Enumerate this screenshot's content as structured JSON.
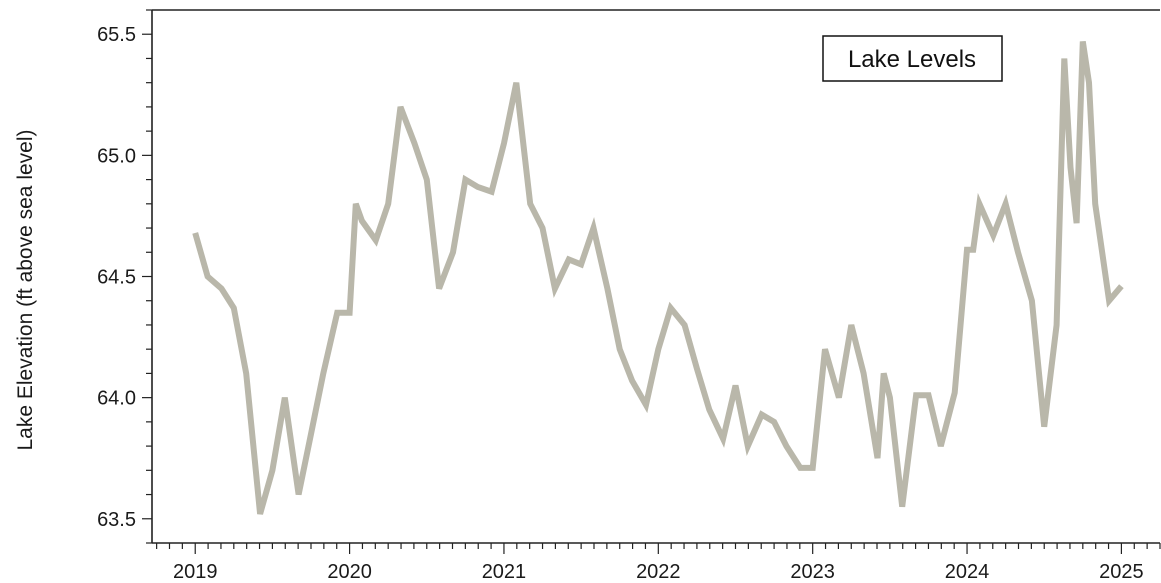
{
  "chart_data": {
    "type": "line",
    "title": "",
    "xlabel": "",
    "ylabel": "Lake Elevation (ft above sea level)",
    "legend": {
      "placement": "top-right",
      "entries": [
        "Lake Levels"
      ]
    },
    "xlim": [
      2018.72,
      2025.25
    ],
    "ylim": [
      63.4,
      65.6
    ],
    "x_ticks": [
      2019,
      2020,
      2021,
      2022,
      2023,
      2024,
      2025
    ],
    "x_tick_labels": [
      "2019",
      "2020",
      "2021",
      "2022",
      "2023",
      "2024",
      "2025"
    ],
    "y_ticks": [
      63.5,
      64.0,
      64.5,
      65.0,
      65.5
    ],
    "y_tick_labels": [
      "63.5",
      "64.0",
      "64.5",
      "65.0",
      "65.5"
    ],
    "grid": false,
    "series": [
      {
        "name": "Lake Levels",
        "color": "#b9b7aa",
        "x": [
          2019.0,
          2019.08,
          2019.17,
          2019.25,
          2019.33,
          2019.42,
          2019.5,
          2019.58,
          2019.67,
          2019.75,
          2019.83,
          2019.92,
          2020.0,
          2020.04,
          2020.08,
          2020.17,
          2020.25,
          2020.33,
          2020.42,
          2020.5,
          2020.58,
          2020.67,
          2020.75,
          2020.83,
          2020.92,
          2021.0,
          2021.08,
          2021.17,
          2021.25,
          2021.33,
          2021.42,
          2021.5,
          2021.58,
          2021.67,
          2021.75,
          2021.83,
          2021.92,
          2022.0,
          2022.08,
          2022.17,
          2022.25,
          2022.33,
          2022.42,
          2022.5,
          2022.58,
          2022.67,
          2022.75,
          2022.83,
          2022.92,
          2023.0,
          2023.08,
          2023.17,
          2023.25,
          2023.33,
          2023.42,
          2023.46,
          2023.5,
          2023.58,
          2023.67,
          2023.75,
          2023.83,
          2023.92,
          2024.0,
          2024.04,
          2024.08,
          2024.17,
          2024.25,
          2024.33,
          2024.42,
          2024.5,
          2024.58,
          2024.63,
          2024.67,
          2024.71,
          2024.75,
          2024.79,
          2024.83,
          2024.92,
          2025.0
        ],
        "y": [
          64.68,
          64.5,
          64.45,
          64.37,
          64.1,
          63.52,
          63.7,
          64.0,
          63.6,
          63.85,
          64.1,
          64.35,
          64.35,
          64.8,
          64.73,
          64.65,
          64.8,
          65.2,
          65.05,
          64.9,
          64.45,
          64.6,
          64.9,
          64.87,
          64.85,
          65.05,
          65.3,
          64.8,
          64.7,
          64.45,
          64.57,
          64.55,
          64.7,
          64.45,
          64.2,
          64.07,
          63.97,
          64.2,
          64.37,
          64.3,
          64.12,
          63.95,
          63.83,
          64.05,
          63.8,
          63.93,
          63.9,
          63.8,
          63.71,
          63.71,
          64.2,
          64.0,
          64.3,
          64.1,
          63.75,
          64.1,
          64.0,
          63.55,
          64.01,
          64.01,
          63.8,
          64.02,
          64.61,
          64.61,
          64.8,
          64.67,
          64.8,
          64.6,
          64.4,
          63.88,
          64.3,
          65.4,
          64.95,
          64.72,
          65.47,
          65.3,
          64.8,
          64.4,
          64.46
        ]
      }
    ]
  }
}
